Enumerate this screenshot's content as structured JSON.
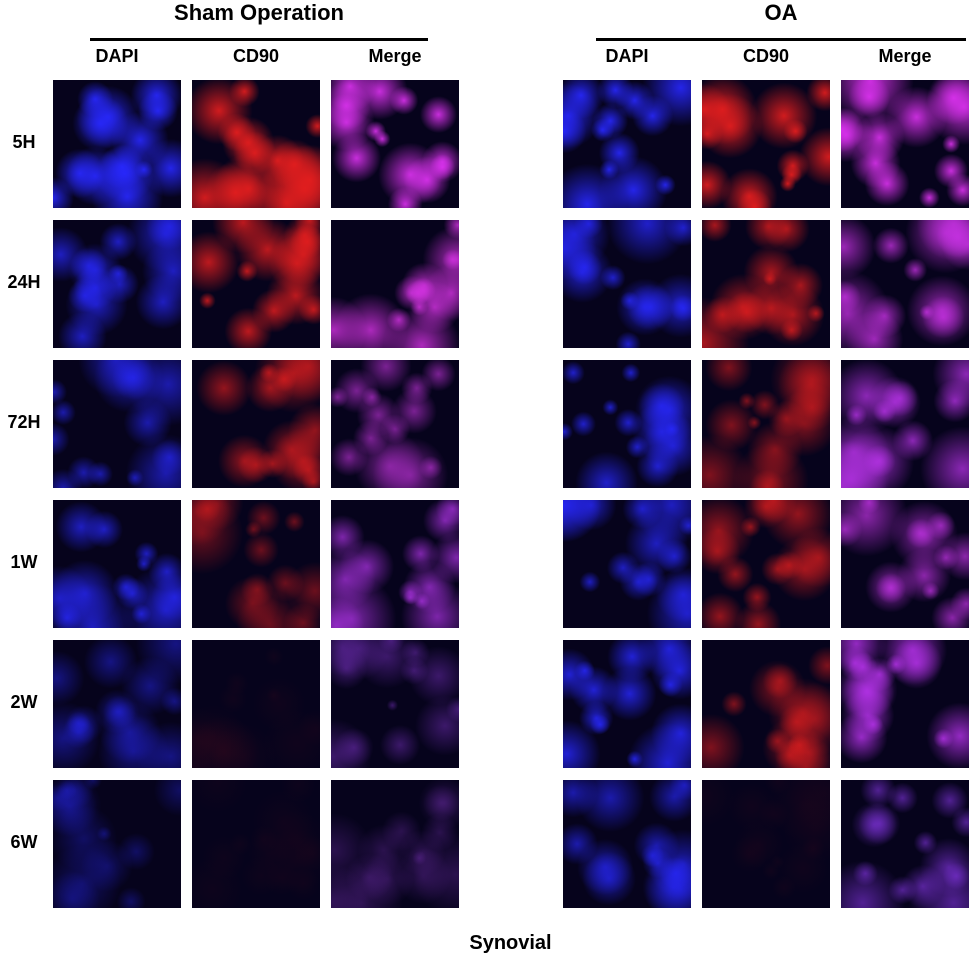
{
  "groups": [
    {
      "title": "Sham Operation",
      "columns": [
        "DAPI",
        "CD90",
        "Merge"
      ]
    },
    {
      "title": "OA",
      "columns": [
        "DAPI",
        "CD90",
        "Merge"
      ]
    }
  ],
  "rows": [
    "5H",
    "24H",
    "72H",
    "1W",
    "2W",
    "6W"
  ],
  "footer": "Synovial"
}
